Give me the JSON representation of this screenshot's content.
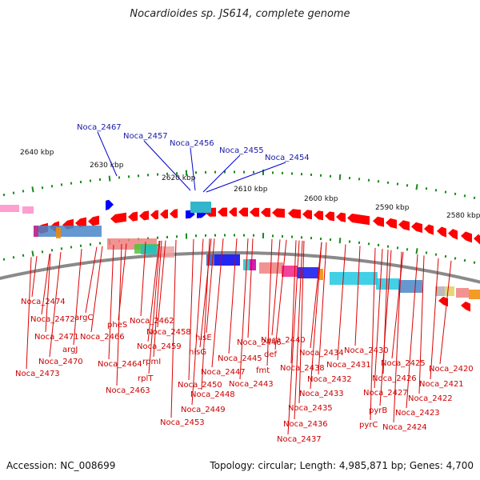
{
  "title": "Nocardioides sp. JS614, complete genome",
  "footer": {
    "accession": "Accession: NC_008699",
    "summary": "Topology: circular; Length: 4,985,871 bp; Genes: 4,700"
  },
  "colors": {
    "forward_gene": "#ff0000",
    "reverse_gene": "#ff0000",
    "blue_gene": "#0000ff",
    "backbone": "#8a8a8a",
    "tick": "#1a8a1a",
    "label_red": "#cc0000",
    "label_blue": "#1a1aa8"
  },
  "ticks": [
    {
      "label": "2640 kbp"
    },
    {
      "label": "2630 kbp"
    },
    {
      "label": "2620 kbp"
    },
    {
      "label": "2610 kbp"
    },
    {
      "label": "2600 kbp"
    },
    {
      "label": "2590 kbp"
    },
    {
      "label": "2580 kbp"
    }
  ],
  "labels_blue": [
    "Noca_2467",
    "Noca_2457",
    "Noca_2456",
    "Noca_2455",
    "Noca_2454"
  ],
  "labels_red": [
    "Noca_2474",
    "Noca_2472",
    "argC",
    "Noca_2471",
    "argJ",
    "Noca_2470",
    "Noca_2473",
    "pheS",
    "Noca_2466",
    "Noca_2462",
    "Noca_2458",
    "Noca_2459",
    "Noca_2464",
    "rpmI",
    "rplT",
    "Noca_2463",
    "hisE",
    "hisG",
    "Noca_2446",
    "Noca_2445",
    "Noca_2447",
    "Noca_2450",
    "Noca_2448",
    "Noca_2449",
    "Noca_2453",
    "Noca_2440",
    "def",
    "fmt",
    "Noca_2443",
    "Noca_2434",
    "Noca_2438",
    "Noca_2432",
    "Noca_2433",
    "Noca_2435",
    "Noca_2436",
    "Noca_2437",
    "Noca_2430",
    "Noca_2431",
    "Noca_2425",
    "Noca_2426",
    "Noca_2427",
    "pyrB",
    "pyrC",
    "Noca_2424",
    "Noca_2423",
    "Noca_2422",
    "Noca_2421",
    "Noca_2420"
  ]
}
